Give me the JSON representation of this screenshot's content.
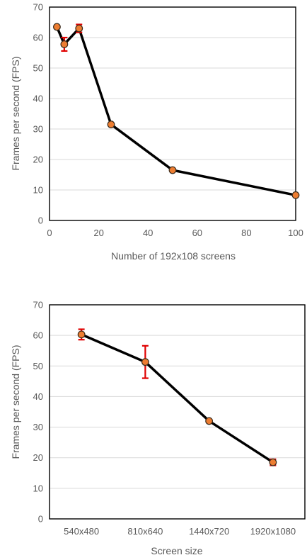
{
  "chart_data": [
    {
      "type": "line",
      "title": "",
      "xlabel": "Number of 192x108 screens",
      "ylabel": "Frames per second (FPS)",
      "xlim": [
        0,
        100
      ],
      "ylim": [
        0,
        70
      ],
      "x_ticks": [
        0,
        20,
        40,
        60,
        80,
        100
      ],
      "y_ticks": [
        0,
        10,
        20,
        30,
        40,
        50,
        60,
        70
      ],
      "grid": "horizontal",
      "legend": "none",
      "series": [
        {
          "x": [
            3,
            6,
            12,
            25,
            50,
            100
          ],
          "values": [
            63.5,
            57.8,
            63.0,
            31.5,
            16.5,
            8.3
          ],
          "error": [
            0,
            2.2,
            1.3,
            0,
            0,
            0
          ]
        }
      ],
      "line_color": "#000000",
      "marker_color": "#ed7d31",
      "error_color": "#e00000"
    },
    {
      "type": "line",
      "title": "",
      "xlabel": "Screen size",
      "ylabel": "Frames per second (FPS)",
      "categories": [
        "540x480",
        "810x640",
        "1440x720",
        "1920x1080"
      ],
      "ylim": [
        0,
        70
      ],
      "y_ticks": [
        0,
        10,
        20,
        30,
        40,
        50,
        60,
        70
      ],
      "grid": "horizontal",
      "legend": "none",
      "series": [
        {
          "values": [
            60.3,
            51.3,
            32.0,
            18.5
          ],
          "error": [
            1.7,
            5.3,
            0.4,
            1.0
          ]
        }
      ],
      "line_color": "#000000",
      "marker_color": "#ed7d31",
      "error_color": "#e00000"
    }
  ]
}
